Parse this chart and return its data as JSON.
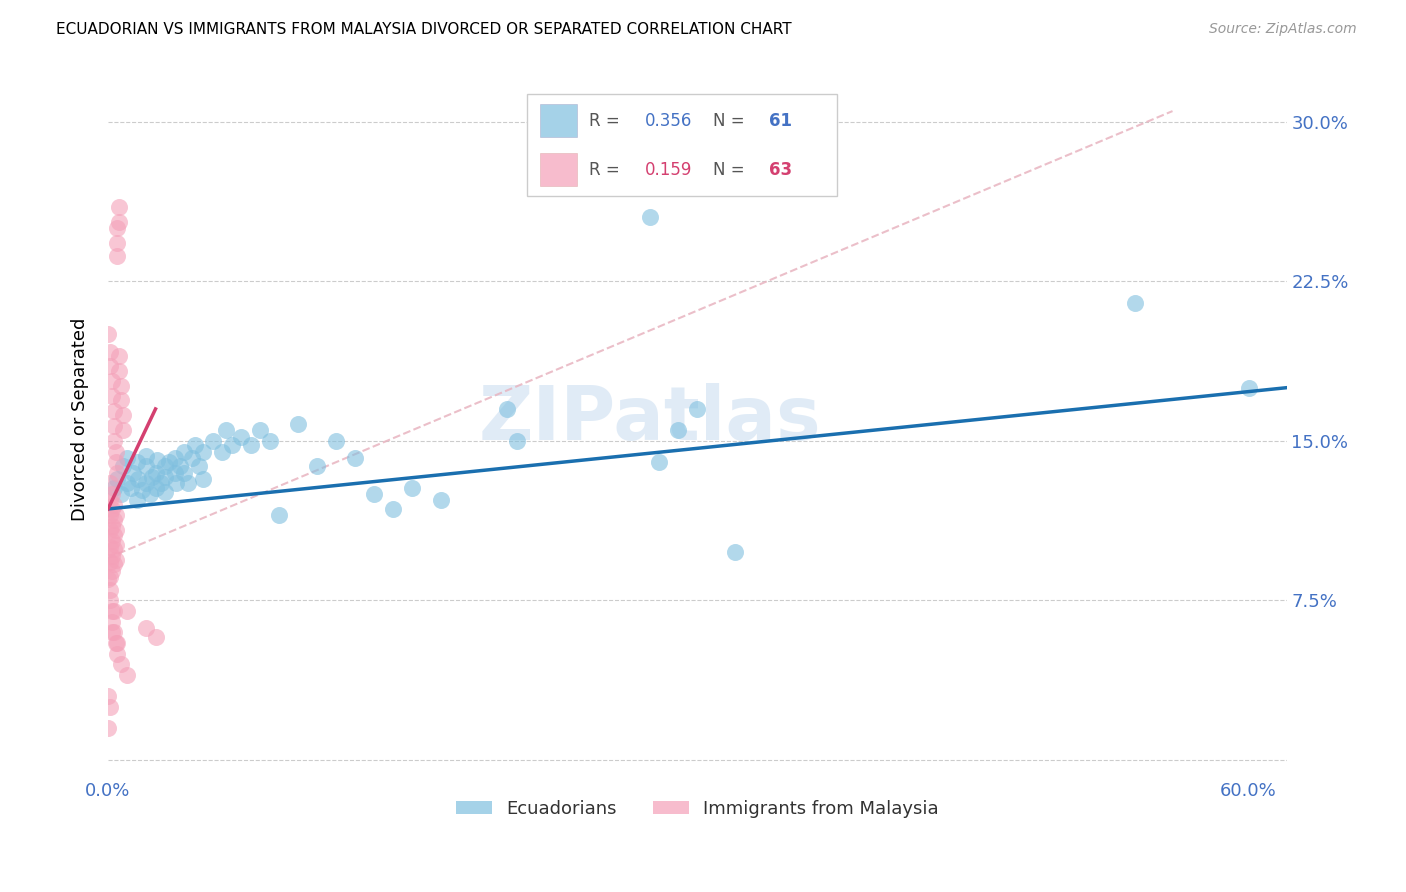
{
  "title": "ECUADORIAN VS IMMIGRANTS FROM MALAYSIA DIVORCED OR SEPARATED CORRELATION CHART",
  "source": "Source: ZipAtlas.com",
  "ylabel": "Divorced or Separated",
  "ytick_labels": [
    "",
    "7.5%",
    "15.0%",
    "22.5%",
    "30.0%"
  ],
  "yticks": [
    0.0,
    0.075,
    0.15,
    0.225,
    0.3
  ],
  "xlim": [
    0.0,
    0.62
  ],
  "ylim": [
    -0.005,
    0.325
  ],
  "legend": {
    "R1": "0.356",
    "N1": "61",
    "R2": "0.159",
    "N2": "63"
  },
  "blue_color": "#7fbfdf",
  "pink_color": "#f4a0b8",
  "line_blue": "#1a6faf",
  "line_pink": "#d44070",
  "watermark": "ZIPatlas",
  "blue_scatter": [
    [
      0.003,
      0.128
    ],
    [
      0.005,
      0.132
    ],
    [
      0.007,
      0.125
    ],
    [
      0.008,
      0.138
    ],
    [
      0.01,
      0.13
    ],
    [
      0.01,
      0.142
    ],
    [
      0.012,
      0.128
    ],
    [
      0.013,
      0.135
    ],
    [
      0.015,
      0.122
    ],
    [
      0.015,
      0.14
    ],
    [
      0.016,
      0.132
    ],
    [
      0.018,
      0.127
    ],
    [
      0.02,
      0.138
    ],
    [
      0.02,
      0.13
    ],
    [
      0.02,
      0.143
    ],
    [
      0.022,
      0.125
    ],
    [
      0.023,
      0.133
    ],
    [
      0.025,
      0.135
    ],
    [
      0.025,
      0.128
    ],
    [
      0.026,
      0.141
    ],
    [
      0.028,
      0.13
    ],
    [
      0.03,
      0.138
    ],
    [
      0.03,
      0.133
    ],
    [
      0.03,
      0.126
    ],
    [
      0.032,
      0.14
    ],
    [
      0.035,
      0.135
    ],
    [
      0.035,
      0.142
    ],
    [
      0.036,
      0.13
    ],
    [
      0.038,
      0.138
    ],
    [
      0.04,
      0.145
    ],
    [
      0.04,
      0.135
    ],
    [
      0.042,
      0.13
    ],
    [
      0.044,
      0.142
    ],
    [
      0.046,
      0.148
    ],
    [
      0.048,
      0.138
    ],
    [
      0.05,
      0.145
    ],
    [
      0.05,
      0.132
    ],
    [
      0.055,
      0.15
    ],
    [
      0.06,
      0.145
    ],
    [
      0.062,
      0.155
    ],
    [
      0.065,
      0.148
    ],
    [
      0.07,
      0.152
    ],
    [
      0.075,
      0.148
    ],
    [
      0.08,
      0.155
    ],
    [
      0.085,
      0.15
    ],
    [
      0.09,
      0.115
    ],
    [
      0.1,
      0.158
    ],
    [
      0.11,
      0.138
    ],
    [
      0.12,
      0.15
    ],
    [
      0.13,
      0.142
    ],
    [
      0.14,
      0.125
    ],
    [
      0.15,
      0.118
    ],
    [
      0.16,
      0.128
    ],
    [
      0.175,
      0.122
    ],
    [
      0.21,
      0.165
    ],
    [
      0.215,
      0.15
    ],
    [
      0.29,
      0.14
    ],
    [
      0.3,
      0.155
    ],
    [
      0.31,
      0.165
    ],
    [
      0.33,
      0.098
    ],
    [
      0.54,
      0.215
    ],
    [
      0.285,
      0.255
    ],
    [
      0.6,
      0.175
    ]
  ],
  "pink_scatter": [
    [
      0.001,
      0.13
    ],
    [
      0.001,
      0.122
    ],
    [
      0.001,
      0.115
    ],
    [
      0.001,
      0.108
    ],
    [
      0.001,
      0.1
    ],
    [
      0.001,
      0.093
    ],
    [
      0.001,
      0.086
    ],
    [
      0.002,
      0.125
    ],
    [
      0.002,
      0.118
    ],
    [
      0.002,
      0.11
    ],
    [
      0.002,
      0.103
    ],
    [
      0.002,
      0.096
    ],
    [
      0.002,
      0.089
    ],
    [
      0.003,
      0.12
    ],
    [
      0.003,
      0.113
    ],
    [
      0.003,
      0.106
    ],
    [
      0.003,
      0.099
    ],
    [
      0.003,
      0.092
    ],
    [
      0.004,
      0.115
    ],
    [
      0.004,
      0.108
    ],
    [
      0.004,
      0.101
    ],
    [
      0.004,
      0.094
    ],
    [
      0.005,
      0.25
    ],
    [
      0.005,
      0.243
    ],
    [
      0.005,
      0.237
    ],
    [
      0.006,
      0.26
    ],
    [
      0.006,
      0.253
    ],
    [
      0.006,
      0.19
    ],
    [
      0.006,
      0.183
    ],
    [
      0.007,
      0.176
    ],
    [
      0.007,
      0.169
    ],
    [
      0.008,
      0.162
    ],
    [
      0.008,
      0.155
    ],
    [
      0.0,
      0.2
    ],
    [
      0.001,
      0.192
    ],
    [
      0.001,
      0.185
    ],
    [
      0.002,
      0.178
    ],
    [
      0.002,
      0.171
    ],
    [
      0.003,
      0.164
    ],
    [
      0.003,
      0.157
    ],
    [
      0.003,
      0.15
    ],
    [
      0.004,
      0.145
    ],
    [
      0.004,
      0.14
    ],
    [
      0.005,
      0.135
    ],
    [
      0.0,
      0.085
    ],
    [
      0.001,
      0.08
    ],
    [
      0.001,
      0.075
    ],
    [
      0.002,
      0.07
    ],
    [
      0.002,
      0.065
    ],
    [
      0.003,
      0.06
    ],
    [
      0.004,
      0.055
    ],
    [
      0.005,
      0.05
    ],
    [
      0.007,
      0.045
    ],
    [
      0.01,
      0.04
    ],
    [
      0.0,
      0.03
    ],
    [
      0.001,
      0.025
    ],
    [
      0.0,
      0.015
    ],
    [
      0.003,
      0.07
    ],
    [
      0.002,
      0.06
    ],
    [
      0.005,
      0.055
    ],
    [
      0.01,
      0.07
    ],
    [
      0.02,
      0.062
    ],
    [
      0.025,
      0.058
    ]
  ],
  "blue_line_x": [
    0.0,
    0.62
  ],
  "blue_line_y": [
    0.118,
    0.175
  ],
  "pink_line_x": [
    0.0,
    0.025
  ],
  "pink_line_y": [
    0.118,
    0.165
  ],
  "dash_line_x": [
    0.0,
    0.56
  ],
  "dash_line_y": [
    0.095,
    0.305
  ]
}
